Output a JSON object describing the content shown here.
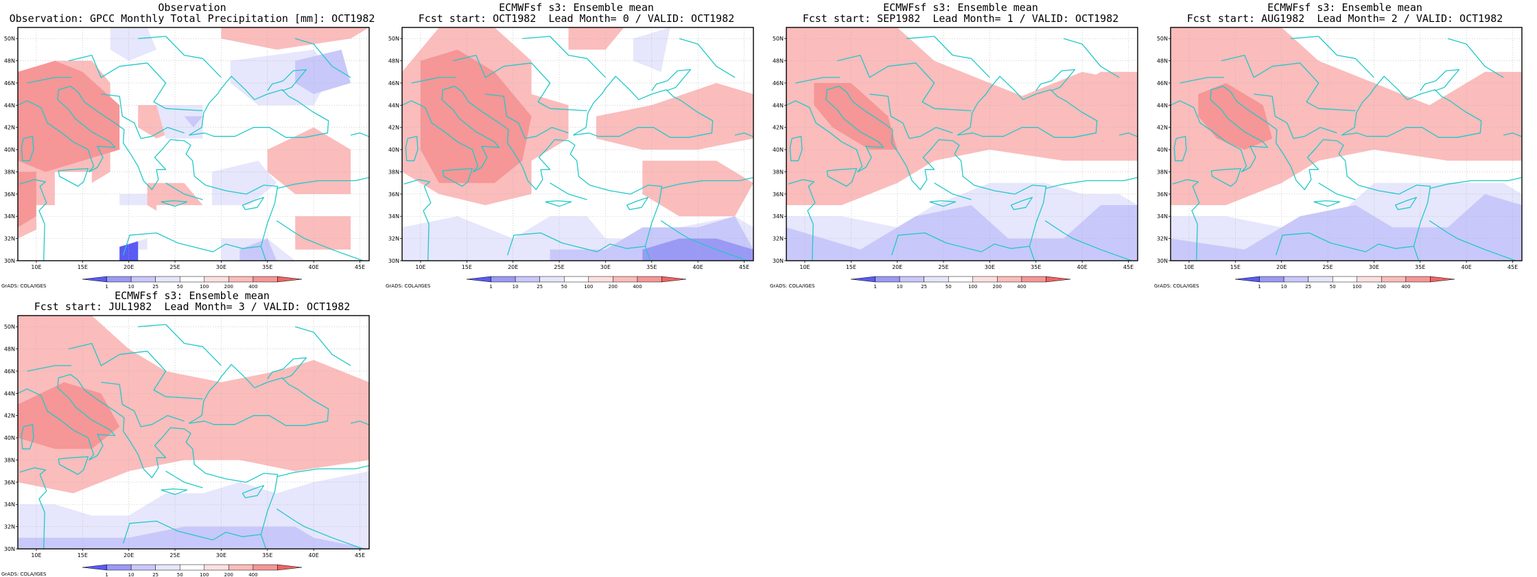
{
  "panels": [
    {
      "title1": "Observation",
      "title2": "Observation: GPCC Monthly Total Precipitation [mm]: OCT1982"
    },
    {
      "title1": "ECMWFsf s3: Ensemble mean",
      "title2": "Fcst start: OCT1982  Lead Month= 0 / VALID: OCT1982"
    },
    {
      "title1": "ECMWFsf s3: Ensemble mean",
      "title2": "Fcst start: SEP1982  Lead Month= 1 / VALID: OCT1982"
    },
    {
      "title1": "ECMWFsf s3: Ensemble mean",
      "title2": "Fcst start: AUG1982  Lead Month= 2 / VALID: OCT1982"
    },
    {
      "title1": "ECMWFsf s3: Ensemble mean",
      "title2": "Fcst start: JUL1982  Lead Month= 3 / VALID: OCT1982"
    }
  ],
  "credit": "GrADS: COLA/IGES",
  "chart_data": {
    "type": "heatmap",
    "x_ticks": [
      "10E",
      "15E",
      "20E",
      "25E",
      "30E",
      "35E",
      "40E",
      "45E"
    ],
    "y_ticks": [
      "30N",
      "32N",
      "34N",
      "36N",
      "38N",
      "40N",
      "42N",
      "44N",
      "46N",
      "48N",
      "50N"
    ],
    "xlim": [
      8,
      46
    ],
    "ylim": [
      30,
      51
    ],
    "colorbar": {
      "levels": [
        "1",
        "10",
        "25",
        "50",
        "100",
        "200",
        "400"
      ],
      "colors": [
        "#5a5af5",
        "#9a9af5",
        "#c8c8fa",
        "#e6e6fc",
        "#ffffff",
        "#fde0e0",
        "#fbbcbc",
        "#f69696",
        "#ef6464"
      ]
    },
    "colors": {
      "coastline": "#20c8c8",
      "grid": "#b4b4b4"
    }
  }
}
